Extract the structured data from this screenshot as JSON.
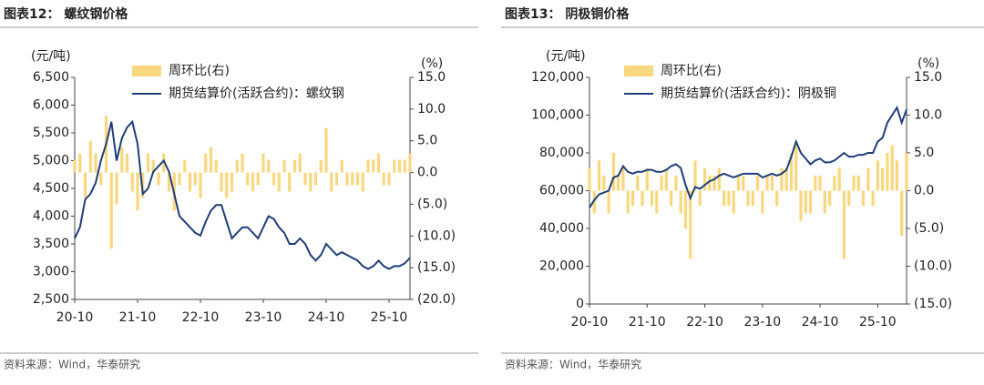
{
  "chart_data": [
    {
      "type": "combo",
      "title": "图表12：  螺纹钢价格",
      "source": "资料来源：Wind，华泰研究",
      "y_label": "(元/吨)",
      "y2_label": "(%)",
      "categories": [
        "20-10",
        null,
        null,
        null,
        null,
        null,
        null,
        null,
        null,
        null,
        null,
        null,
        "21-10",
        null,
        null,
        null,
        null,
        null,
        null,
        null,
        null,
        null,
        null,
        null,
        "22-10",
        null,
        null,
        null,
        null,
        null,
        null,
        null,
        null,
        null,
        null,
        null,
        "23-10",
        null,
        null,
        null,
        null,
        null,
        null,
        null,
        null,
        null,
        null,
        null,
        "24-10",
        null,
        null,
        null,
        null,
        null,
        null,
        null,
        null,
        null,
        null,
        null,
        "25-10",
        null,
        null,
        null,
        null
      ],
      "ylim": [
        2500,
        6500
      ],
      "yticks": [
        {
          "value": 2500,
          "label": "2,500"
        },
        {
          "value": 3000,
          "label": "3,000"
        },
        {
          "value": 3500,
          "label": "3,500"
        },
        {
          "value": 4000,
          "label": "4,000"
        },
        {
          "value": 4500,
          "label": "4,500"
        },
        {
          "value": 5000,
          "label": "5,000"
        },
        {
          "value": 5500,
          "label": "5,500"
        },
        {
          "value": 6000,
          "label": "6,000"
        },
        {
          "value": 6500,
          "label": "6,500"
        }
      ],
      "y2lim": [
        -20,
        15
      ],
      "y2ticks": [
        {
          "value": -20,
          "label": "(20.0)"
        },
        {
          "value": -15,
          "label": "(15.0)"
        },
        {
          "value": -10,
          "label": "(10.0)"
        },
        {
          "value": -5,
          "label": "(5.0)"
        },
        {
          "value": 0,
          "label": "0.0"
        },
        {
          "value": 5,
          "label": "5.0"
        },
        {
          "value": 10,
          "label": "10.0"
        },
        {
          "value": 15,
          "label": "15.0"
        }
      ],
      "series": [
        {
          "name": "周环比(右)",
          "type": "bar",
          "axis": "y2",
          "color": "#f9d77e",
          "values": [
            2,
            3,
            -4,
            5,
            3,
            -2,
            9,
            -12,
            -5,
            4,
            3,
            -3,
            -6,
            -4,
            3,
            2,
            -2,
            3,
            -3,
            -6,
            -2,
            2,
            -3,
            -2,
            -4,
            3,
            4,
            2,
            -3,
            -4,
            -3,
            2,
            3,
            -2,
            -3,
            -2,
            3,
            2,
            -2,
            -3,
            2,
            -3,
            2,
            3,
            -2,
            -3,
            -2,
            2,
            7,
            -3,
            -2,
            2,
            -2,
            -2,
            -2,
            -3,
            2,
            2,
            3,
            -2,
            -2,
            2,
            2,
            2,
            3
          ]
        },
        {
          "name": "期货结算价(活跃合约)：螺纹钢",
          "type": "line",
          "color": "#1f3e78",
          "values": [
            3600,
            3800,
            4300,
            4400,
            4600,
            5000,
            5300,
            5700,
            5000,
            5400,
            5600,
            5700,
            5300,
            4400,
            4500,
            4800,
            4900,
            5000,
            4800,
            4400,
            4000,
            3900,
            3800,
            3700,
            3650,
            3900,
            4100,
            4200,
            4200,
            3900,
            3600,
            3700,
            3800,
            3800,
            3700,
            3600,
            3800,
            4000,
            3950,
            3800,
            3700,
            3500,
            3500,
            3600,
            3500,
            3300,
            3200,
            3300,
            3500,
            3400,
            3300,
            3350,
            3300,
            3250,
            3200,
            3100,
            3050,
            3100,
            3200,
            3100,
            3050,
            3100,
            3100,
            3150,
            3250
          ]
        }
      ]
    },
    {
      "type": "combo",
      "title": "图表13：  阴极铜价格",
      "source": "资料来源：Wind，华泰研究",
      "y_label": "(元/吨)",
      "y2_label": "(%)",
      "categories": [
        "20-10",
        null,
        null,
        null,
        null,
        null,
        null,
        null,
        null,
        null,
        null,
        null,
        "21-10",
        null,
        null,
        null,
        null,
        null,
        null,
        null,
        null,
        null,
        null,
        null,
        "22-10",
        null,
        null,
        null,
        null,
        null,
        null,
        null,
        null,
        null,
        null,
        null,
        "23-10",
        null,
        null,
        null,
        null,
        null,
        null,
        null,
        null,
        null,
        null,
        null,
        "24-10",
        null,
        null,
        null,
        null,
        null,
        null,
        null,
        null,
        null,
        null,
        null,
        "25-10",
        null,
        null,
        null,
        null,
        null,
        null
      ],
      "ylim": [
        0,
        120000
      ],
      "yticks": [
        0,
        {
          "value": 20000,
          "label": "20,000"
        },
        {
          "value": 40000,
          "label": "40,000"
        },
        {
          "value": 60000,
          "label": "60,000"
        },
        {
          "value": 80000,
          "label": "80,000"
        },
        {
          "value": 100000,
          "label": "100,000"
        },
        {
          "value": 120000,
          "label": "120,000"
        }
      ],
      "y2lim": [
        -15,
        15
      ],
      "y2ticks": [
        {
          "value": -15,
          "label": "(15.0)"
        },
        {
          "value": -10,
          "label": "(10.0)"
        },
        {
          "value": -5,
          "label": "(5.0)"
        },
        {
          "value": 0,
          "label": "0.0"
        },
        {
          "value": 5,
          "label": "5.0"
        },
        {
          "value": 10,
          "label": "10.0"
        },
        {
          "value": 15,
          "label": "15.0"
        }
      ],
      "series": [
        {
          "name": "周环比(右)",
          "type": "bar",
          "axis": "y2",
          "color": "#f9d77e",
          "values": [
            3,
            -3,
            4,
            2,
            -3,
            5,
            2,
            3,
            -3,
            -2,
            2,
            -2,
            3,
            -2,
            -3,
            2,
            3,
            -2,
            2,
            -3,
            -5,
            -9,
            4,
            -2,
            3,
            2,
            2,
            3,
            -2,
            -2,
            -3,
            2,
            2,
            -2,
            -2,
            2,
            -3,
            2,
            2,
            -2,
            3,
            3,
            5,
            6,
            -4,
            -3,
            -3,
            2,
            2,
            -3,
            -2,
            2,
            3,
            -9,
            -2,
            2,
            2,
            -2,
            3,
            -2,
            4,
            3,
            5,
            6,
            4,
            -6,
            5
          ]
        },
        {
          "name": "期货结算价(活跃合约)：阴极铜",
          "type": "line",
          "color": "#1f3e78",
          "values": [
            51000,
            55000,
            58000,
            59000,
            60000,
            67000,
            68000,
            73000,
            70000,
            69000,
            70000,
            70000,
            71000,
            71000,
            70000,
            70000,
            71000,
            73000,
            74000,
            72000,
            63000,
            56000,
            62000,
            61000,
            63000,
            65000,
            66000,
            68000,
            69000,
            68000,
            67000,
            68000,
            69000,
            69000,
            69000,
            69000,
            67000,
            68000,
            69000,
            68000,
            69000,
            71000,
            78000,
            86000,
            80000,
            77000,
            74000,
            76000,
            77000,
            75000,
            75000,
            76000,
            78000,
            80000,
            78000,
            78000,
            79000,
            79000,
            80000,
            80000,
            86000,
            88000,
            96000,
            100000,
            104000,
            96000,
            103000
          ]
        }
      ]
    }
  ]
}
